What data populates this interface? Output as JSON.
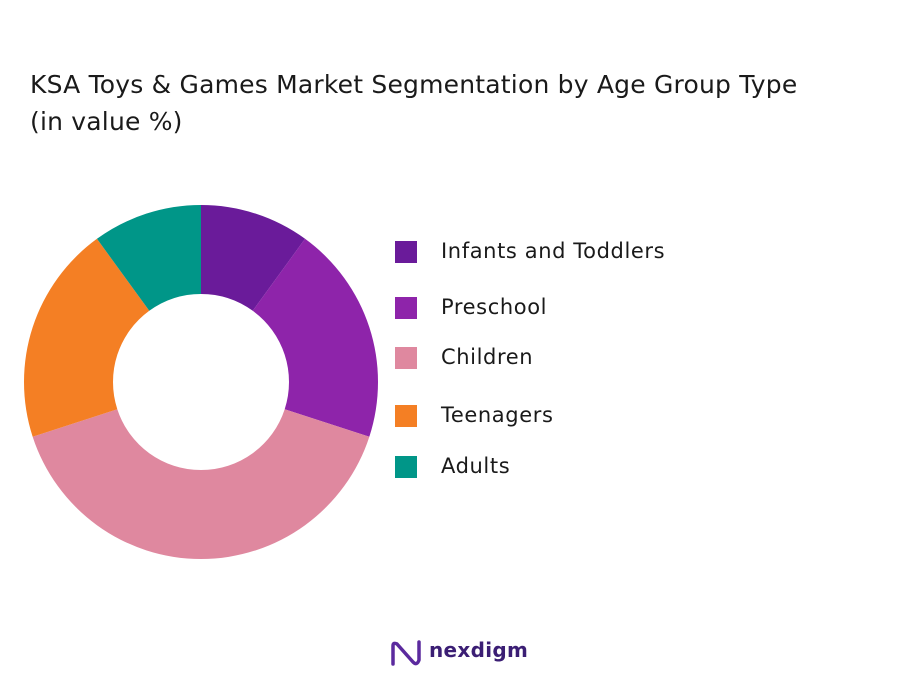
{
  "title_line1": "KSA Toys & Games Market Segmentation by Age Group Type",
  "title_line2": "(in value %)",
  "brand": {
    "name": "nexdigm",
    "logo_color": "#5b2a9e"
  },
  "chart_data": {
    "type": "pie",
    "style": "donut",
    "title": "KSA Toys & Games Market Segmentation by Age Group Type (in value %)",
    "legend_placement": "right",
    "categories": [
      "Infants and Toddlers",
      "Preschool",
      "Children",
      "Teenagers",
      "Adults"
    ],
    "values": [
      10,
      20,
      40,
      20,
      10
    ],
    "colors": [
      "#6a1b9a",
      "#8e24aa",
      "#df889f",
      "#f47f24",
      "#009688"
    ]
  }
}
